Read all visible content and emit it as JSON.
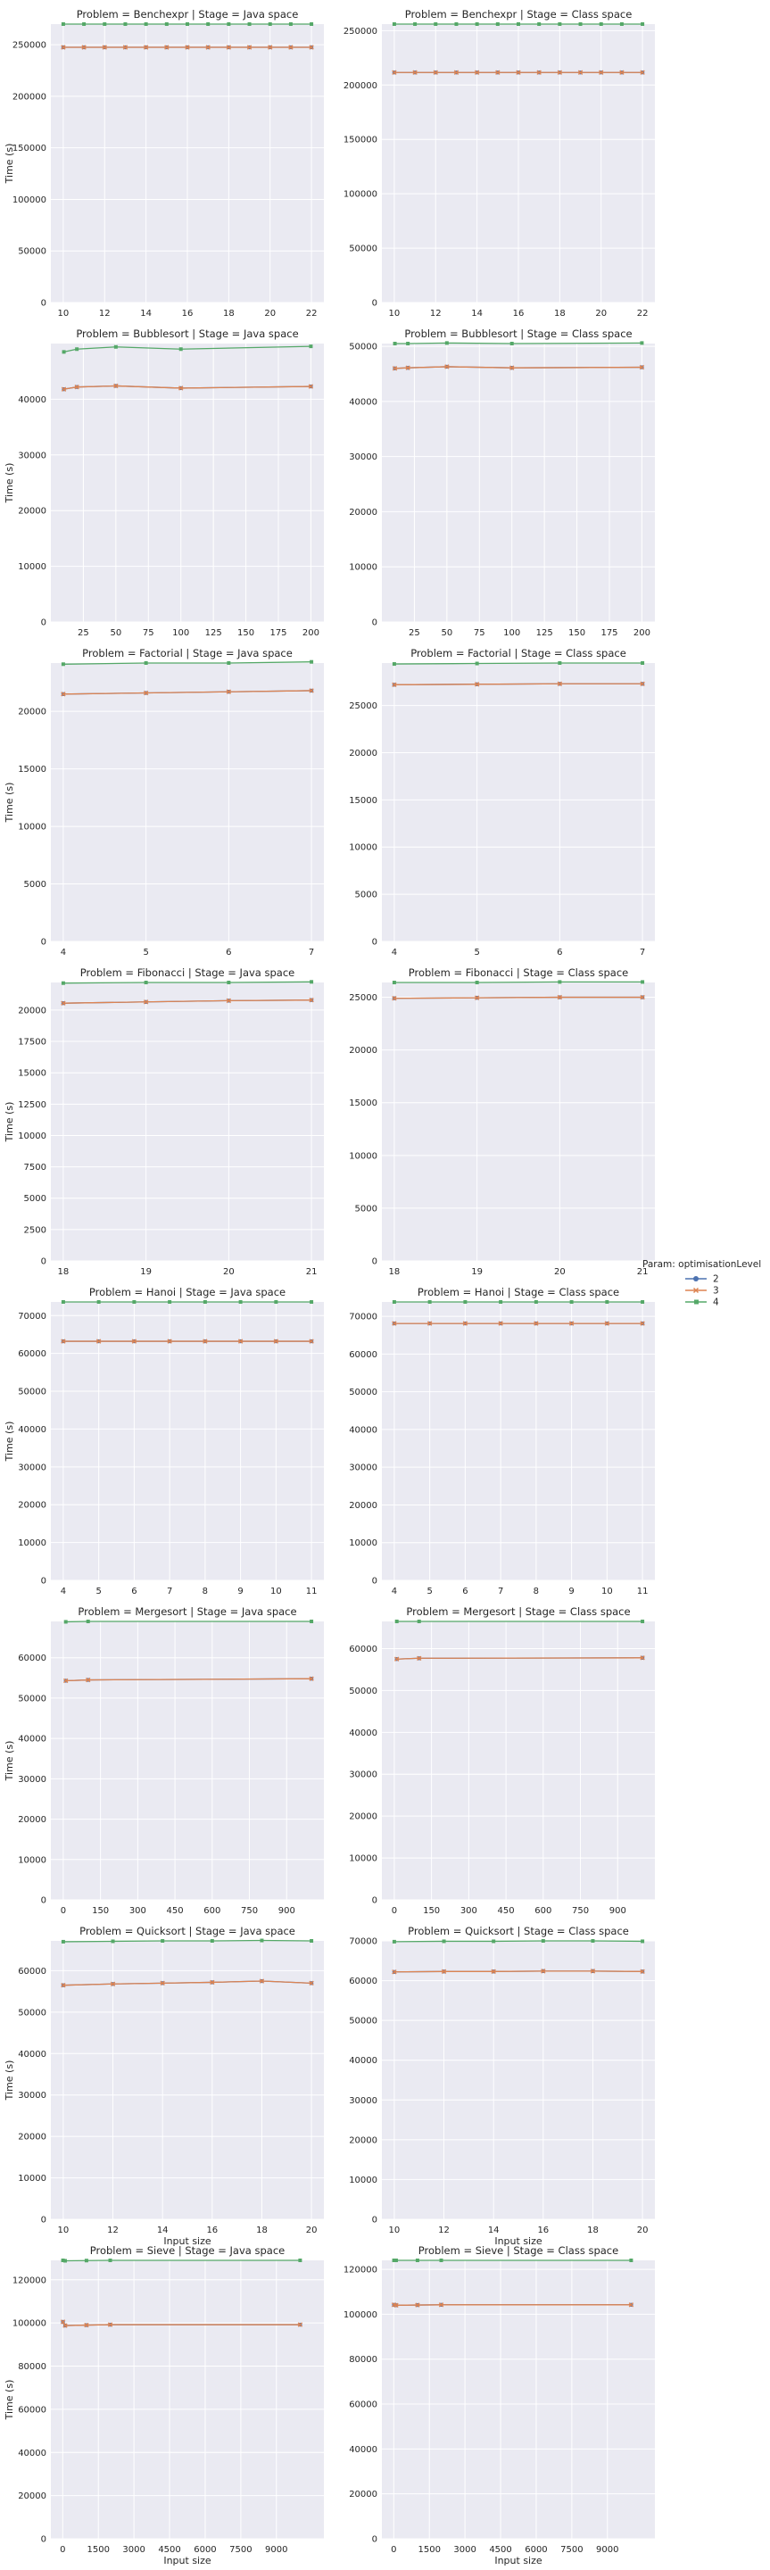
{
  "legend": {
    "title": "Param: optimisationLevel",
    "entries": [
      {
        "label": "2",
        "color": "#4c72b0",
        "marker": "circle"
      },
      {
        "label": "3",
        "color": "#dd8452",
        "marker": "x"
      },
      {
        "label": "4",
        "color": "#55a868",
        "marker": "square"
      }
    ]
  },
  "chart_data": [
    {
      "type": "line",
      "title": "Problem = Benchexpr | Stage = Java space",
      "xlabel": "",
      "ylabel": "Time (s)",
      "xlim": [
        9.4,
        22.6
      ],
      "ylim": [
        0,
        270000
      ],
      "xticks": [
        10,
        12,
        14,
        16,
        18,
        20,
        22
      ],
      "yticks": [
        0,
        50000,
        100000,
        150000,
        200000,
        250000
      ],
      "x": [
        10,
        11,
        12,
        13,
        14,
        15,
        16,
        17,
        18,
        19,
        20,
        21,
        22
      ],
      "series": [
        {
          "name": "2",
          "values": [
            247500,
            247500,
            247500,
            247500,
            247500,
            247500,
            247500,
            247500,
            247500,
            247500,
            247500,
            247500,
            247500
          ]
        },
        {
          "name": "3",
          "values": [
            247500,
            247500,
            247500,
            247500,
            247500,
            247500,
            247500,
            247500,
            247500,
            247500,
            247500,
            247500,
            247500
          ]
        },
        {
          "name": "4",
          "values": [
            270000,
            270000,
            270000,
            270000,
            270000,
            270000,
            270000,
            270000,
            270000,
            270000,
            270000,
            270000,
            270000
          ]
        }
      ]
    },
    {
      "type": "line",
      "title": "Problem = Benchexpr | Stage = Class space",
      "xlabel": "",
      "ylabel": "",
      "xlim": [
        9.4,
        22.6
      ],
      "ylim": [
        0,
        256000
      ],
      "xticks": [
        10,
        12,
        14,
        16,
        18,
        20,
        22
      ],
      "yticks": [
        0,
        50000,
        100000,
        150000,
        200000,
        250000
      ],
      "x": [
        10,
        11,
        12,
        13,
        14,
        15,
        16,
        17,
        18,
        19,
        20,
        21,
        22
      ],
      "series": [
        {
          "name": "2",
          "values": [
            211500,
            211500,
            211500,
            211500,
            211500,
            211500,
            211500,
            211500,
            211500,
            211500,
            211500,
            211500,
            211500
          ]
        },
        {
          "name": "3",
          "values": [
            211500,
            211500,
            211500,
            211500,
            211500,
            211500,
            211500,
            211500,
            211500,
            211500,
            211500,
            211500,
            211500
          ]
        },
        {
          "name": "4",
          "values": [
            256000,
            256000,
            256000,
            256000,
            256000,
            256000,
            256000,
            256000,
            256000,
            256000,
            256000,
            256000,
            256000
          ]
        }
      ]
    },
    {
      "type": "line",
      "title": "Problem = Bubblesort | Stage = Java space",
      "xlabel": "",
      "ylabel": "Time (s)",
      "xlim": [
        0,
        210
      ],
      "ylim": [
        0,
        50000
      ],
      "xticks": [
        25,
        50,
        75,
        100,
        125,
        150,
        175,
        200
      ],
      "yticks": [
        0,
        10000,
        20000,
        30000,
        40000
      ],
      "x": [
        10,
        20,
        50,
        100,
        200
      ],
      "series": [
        {
          "name": "2",
          "values": [
            41800,
            42200,
            42400,
            42000,
            42300
          ]
        },
        {
          "name": "3",
          "values": [
            41800,
            42200,
            42400,
            42000,
            42300
          ]
        },
        {
          "name": "4",
          "values": [
            48500,
            49000,
            49400,
            49000,
            49500
          ]
        }
      ]
    },
    {
      "type": "line",
      "title": "Problem = Bubblesort | Stage = Class space",
      "xlabel": "",
      "ylabel": "",
      "xlim": [
        0,
        210
      ],
      "ylim": [
        0,
        50500
      ],
      "xticks": [
        25,
        50,
        75,
        100,
        125,
        150,
        175,
        200
      ],
      "yticks": [
        0,
        10000,
        20000,
        30000,
        40000,
        50000
      ],
      "x": [
        10,
        20,
        50,
        100,
        200
      ],
      "series": [
        {
          "name": "2",
          "values": [
            46000,
            46100,
            46300,
            46100,
            46200
          ]
        },
        {
          "name": "3",
          "values": [
            46000,
            46100,
            46300,
            46100,
            46200
          ]
        },
        {
          "name": "4",
          "values": [
            50500,
            50500,
            50600,
            50500,
            50600
          ]
        }
      ]
    },
    {
      "type": "line",
      "title": "Problem = Factorial | Stage = Java space",
      "xlabel": "",
      "ylabel": "Time (s)",
      "xlim": [
        3.85,
        7.15
      ],
      "ylim": [
        0,
        24200
      ],
      "xticks": [
        4,
        5,
        6,
        7
      ],
      "yticks": [
        0,
        5000,
        10000,
        15000,
        20000
      ],
      "x": [
        4,
        5,
        6,
        7
      ],
      "series": [
        {
          "name": "2",
          "values": [
            21500,
            21600,
            21700,
            21800
          ]
        },
        {
          "name": "3",
          "values": [
            21500,
            21600,
            21700,
            21800
          ]
        },
        {
          "name": "4",
          "values": [
            24100,
            24200,
            24200,
            24300
          ]
        }
      ]
    },
    {
      "type": "line",
      "title": "Problem = Factorial | Stage = Class space",
      "xlabel": "",
      "ylabel": "",
      "xlim": [
        3.85,
        7.15
      ],
      "ylim": [
        0,
        29500
      ],
      "xticks": [
        4,
        5,
        6,
        7
      ],
      "yticks": [
        0,
        5000,
        10000,
        15000,
        20000,
        25000
      ],
      "x": [
        4,
        5,
        6,
        7
      ],
      "series": [
        {
          "name": "2",
          "values": [
            27200,
            27250,
            27300,
            27300
          ]
        },
        {
          "name": "3",
          "values": [
            27200,
            27250,
            27300,
            27300
          ]
        },
        {
          "name": "4",
          "values": [
            29400,
            29450,
            29500,
            29500
          ]
        }
      ]
    },
    {
      "type": "line",
      "title": "Problem = Fibonacci | Stage = Java space",
      "xlabel": "",
      "ylabel": "Time (s)",
      "xlim": [
        17.85,
        21.15
      ],
      "ylim": [
        0,
        22200
      ],
      "xticks": [
        18,
        19,
        20,
        21
      ],
      "yticks": [
        0,
        2500,
        5000,
        7500,
        10000,
        12500,
        15000,
        17500,
        20000
      ],
      "x": [
        18,
        19,
        20,
        21
      ],
      "series": [
        {
          "name": "2",
          "values": [
            20550,
            20650,
            20750,
            20800
          ]
        },
        {
          "name": "3",
          "values": [
            20550,
            20650,
            20750,
            20800
          ]
        },
        {
          "name": "4",
          "values": [
            22150,
            22200,
            22200,
            22250
          ]
        }
      ]
    },
    {
      "type": "line",
      "title": "Problem = Fibonacci | Stage = Class space",
      "xlabel": "",
      "ylabel": "",
      "xlim": [
        17.85,
        21.15
      ],
      "ylim": [
        0,
        26400
      ],
      "xticks": [
        18,
        19,
        20,
        21
      ],
      "yticks": [
        0,
        5000,
        10000,
        15000,
        20000,
        25000
      ],
      "x": [
        18,
        19,
        20,
        21
      ],
      "series": [
        {
          "name": "2",
          "values": [
            24900,
            24950,
            25000,
            25000
          ]
        },
        {
          "name": "3",
          "values": [
            24900,
            24950,
            25000,
            25000
          ]
        },
        {
          "name": "4",
          "values": [
            26400,
            26400,
            26450,
            26450
          ]
        }
      ]
    },
    {
      "type": "line",
      "title": "Problem = Hanoi | Stage = Java space",
      "xlabel": "",
      "ylabel": "Time (s)",
      "xlim": [
        3.65,
        11.35
      ],
      "ylim": [
        0,
        73600
      ],
      "xticks": [
        4,
        5,
        6,
        7,
        8,
        9,
        10,
        11
      ],
      "yticks": [
        0,
        10000,
        20000,
        30000,
        40000,
        50000,
        60000,
        70000
      ],
      "x": [
        4,
        5,
        6,
        7,
        8,
        9,
        10,
        11
      ],
      "series": [
        {
          "name": "2",
          "values": [
            63200,
            63200,
            63200,
            63200,
            63200,
            63200,
            63200,
            63200
          ]
        },
        {
          "name": "3",
          "values": [
            63200,
            63200,
            63200,
            63200,
            63200,
            63200,
            63200,
            63200
          ]
        },
        {
          "name": "4",
          "values": [
            73600,
            73600,
            73600,
            73600,
            73600,
            73600,
            73600,
            73600
          ]
        }
      ]
    },
    {
      "type": "line",
      "title": "Problem = Hanoi | Stage = Class space",
      "xlabel": "",
      "ylabel": "",
      "xlim": [
        3.65,
        11.35
      ],
      "ylim": [
        0,
        73800
      ],
      "xticks": [
        4,
        5,
        6,
        7,
        8,
        9,
        10,
        11
      ],
      "yticks": [
        0,
        10000,
        20000,
        30000,
        40000,
        50000,
        60000,
        70000
      ],
      "x": [
        4,
        5,
        6,
        7,
        8,
        9,
        10,
        11
      ],
      "series": [
        {
          "name": "2",
          "values": [
            68100,
            68100,
            68100,
            68100,
            68100,
            68100,
            68100,
            68100
          ]
        },
        {
          "name": "3",
          "values": [
            68100,
            68100,
            68100,
            68100,
            68100,
            68100,
            68100,
            68100
          ]
        },
        {
          "name": "4",
          "values": [
            73800,
            73800,
            73800,
            73800,
            73800,
            73800,
            73800,
            73800
          ]
        }
      ]
    },
    {
      "type": "line",
      "title": "Problem = Mergesort | Stage = Java space",
      "xlabel": "",
      "ylabel": "Time (s)",
      "xlim": [
        -50,
        1050
      ],
      "ylim": [
        0,
        69000
      ],
      "xticks": [
        0,
        150,
        300,
        450,
        600,
        750,
        900
      ],
      "yticks": [
        0,
        10000,
        20000,
        30000,
        40000,
        50000,
        60000
      ],
      "x": [
        10,
        100,
        1000
      ],
      "series": [
        {
          "name": "2",
          "values": [
            54300,
            54500,
            54800
          ]
        },
        {
          "name": "3",
          "values": [
            54300,
            54500,
            54800
          ]
        },
        {
          "name": "4",
          "values": [
            68900,
            69000,
            69000
          ]
        }
      ]
    },
    {
      "type": "line",
      "title": "Problem = Mergesort | Stage = Class space",
      "xlabel": "",
      "ylabel": "",
      "xlim": [
        -50,
        1050
      ],
      "ylim": [
        0,
        66500
      ],
      "xticks": [
        0,
        150,
        300,
        450,
        600,
        750,
        900
      ],
      "yticks": [
        0,
        10000,
        20000,
        30000,
        40000,
        50000,
        60000
      ],
      "x": [
        10,
        100,
        1000
      ],
      "series": [
        {
          "name": "2",
          "values": [
            57500,
            57700,
            57800
          ]
        },
        {
          "name": "3",
          "values": [
            57500,
            57700,
            57800
          ]
        },
        {
          "name": "4",
          "values": [
            66500,
            66500,
            66500
          ]
        }
      ]
    },
    {
      "type": "line",
      "title": "Problem = Quicksort | Stage = Java space",
      "xlabel": "Input size",
      "ylabel": "Time (s)",
      "xlim": [
        9.5,
        20.5
      ],
      "ylim": [
        0,
        67200
      ],
      "xticks": [
        10,
        12,
        14,
        16,
        18,
        20
      ],
      "yticks": [
        0,
        10000,
        20000,
        30000,
        40000,
        50000,
        60000
      ],
      "x": [
        10,
        12,
        14,
        16,
        18,
        20
      ],
      "series": [
        {
          "name": "2",
          "values": [
            56500,
            56800,
            57000,
            57200,
            57500,
            57000
          ]
        },
        {
          "name": "3",
          "values": [
            56500,
            56800,
            57000,
            57200,
            57500,
            57000
          ]
        },
        {
          "name": "4",
          "values": [
            67000,
            67100,
            67200,
            67200,
            67300,
            67200
          ]
        }
      ]
    },
    {
      "type": "line",
      "title": "Problem = Quicksort | Stage = Class space",
      "xlabel": "Input size",
      "ylabel": "",
      "xlim": [
        9.5,
        20.5
      ],
      "ylim": [
        0,
        70000
      ],
      "xticks": [
        10,
        12,
        14,
        16,
        18,
        20
      ],
      "yticks": [
        0,
        10000,
        20000,
        30000,
        40000,
        50000,
        60000,
        70000
      ],
      "x": [
        10,
        12,
        14,
        16,
        18,
        20
      ],
      "series": [
        {
          "name": "2",
          "values": [
            62200,
            62300,
            62300,
            62400,
            62400,
            62300
          ]
        },
        {
          "name": "3",
          "values": [
            62200,
            62300,
            62300,
            62400,
            62400,
            62300
          ]
        },
        {
          "name": "4",
          "values": [
            69800,
            69900,
            69900,
            70000,
            70000,
            69900
          ]
        }
      ]
    },
    {
      "type": "line",
      "title": "Problem = Sieve | Stage = Java space",
      "xlabel": "Input size",
      "ylabel": "Time (s)",
      "xlim": [
        -500,
        11000
      ],
      "ylim": [
        0,
        129000
      ],
      "xticks": [
        0,
        1500,
        3000,
        4500,
        6000,
        7500,
        9000
      ],
      "yticks": [
        0,
        20000,
        40000,
        60000,
        80000,
        100000,
        120000
      ],
      "x": [
        10,
        100,
        1000,
        2000,
        10000
      ],
      "series": [
        {
          "name": "2",
          "values": [
            100500,
            98800,
            99000,
            99200,
            99200
          ]
        },
        {
          "name": "3",
          "values": [
            100500,
            98800,
            99000,
            99200,
            99200
          ]
        },
        {
          "name": "4",
          "values": [
            129000,
            128800,
            128900,
            129000,
            129000
          ]
        }
      ]
    },
    {
      "type": "line",
      "title": "Problem = Sieve | Stage = Class space",
      "xlabel": "Input size",
      "ylabel": "",
      "xlim": [
        -500,
        11000
      ],
      "ylim": [
        0,
        124000
      ],
      "xticks": [
        0,
        1500,
        3000,
        4500,
        6000,
        7500,
        9000
      ],
      "yticks": [
        0,
        20000,
        40000,
        60000,
        80000,
        100000,
        120000
      ],
      "x": [
        10,
        100,
        1000,
        2000,
        10000
      ],
      "series": [
        {
          "name": "2",
          "values": [
            104200,
            104000,
            104100,
            104200,
            104200
          ]
        },
        {
          "name": "3",
          "values": [
            104200,
            104000,
            104100,
            104200,
            104200
          ]
        },
        {
          "name": "4",
          "values": [
            124000,
            124000,
            124000,
            124000,
            124000
          ]
        }
      ]
    }
  ]
}
